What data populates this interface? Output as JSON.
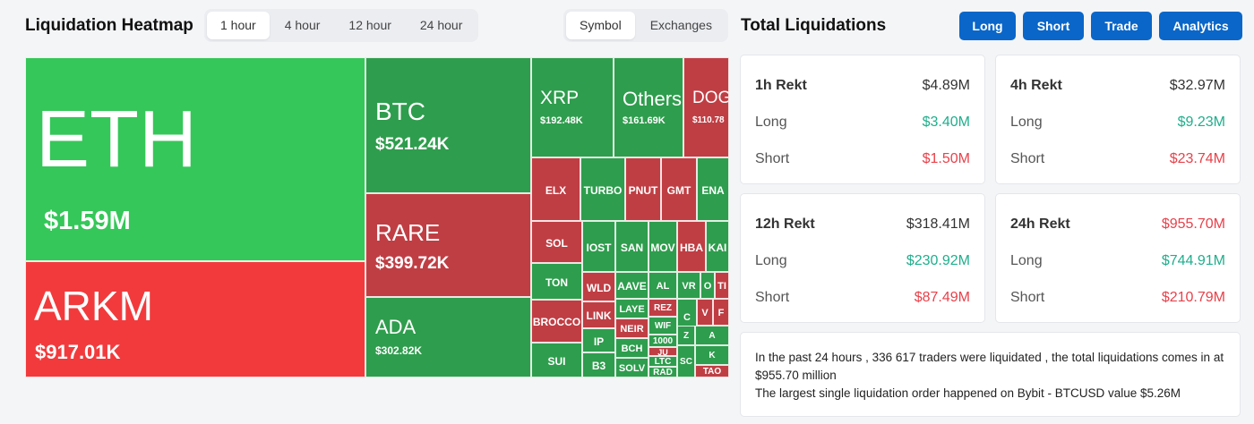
{
  "heatmap": {
    "title": "Liquidation Heatmap",
    "time_tabs": [
      "1 hour",
      "4 hour",
      "12 hour",
      "24 hour"
    ],
    "active_time_tab": "1 hour",
    "view_tabs": [
      "Symbol",
      "Exchanges"
    ],
    "active_view_tab": "Symbol",
    "colors": {
      "strong_green": "#35c759",
      "green": "#2e9d4d",
      "strong_red": "#f23a3c",
      "red": "#bf3e44"
    },
    "tiles": {
      "eth": {
        "symbol": "ETH",
        "value": "$1.59M"
      },
      "arkm": {
        "symbol": "ARKM",
        "value": "$917.01K"
      },
      "btc": {
        "symbol": "BTC",
        "value": "$521.24K"
      },
      "rare": {
        "symbol": "RARE",
        "value": "$399.72K"
      },
      "ada": {
        "symbol": "ADA",
        "value": "$302.82K"
      },
      "xrp": {
        "symbol": "XRP",
        "value": "$192.48K"
      },
      "others": {
        "symbol": "Others",
        "value": "$161.69K"
      },
      "doge": {
        "symbol": "DOG",
        "value": "$110.78"
      }
    },
    "small_tiles": [
      "ELX",
      "TURBO",
      "PNUT",
      "GMT",
      "ENA",
      "SOL",
      "IOST",
      "SAN",
      "MOV",
      "HBA",
      "KAI",
      "TON",
      "WLD",
      "AAVE",
      "AL",
      "VR",
      "O",
      "TI",
      "BROCCO",
      "LINK",
      "LAYE",
      "REZ",
      "C",
      "V",
      "F",
      "NEIR",
      "WIF",
      "Z",
      "A",
      "IP",
      "BCH",
      "1000",
      "JU",
      "K",
      "SUI",
      "B3",
      "SOLV",
      "LTC",
      "RAD",
      "SC",
      "TAO"
    ]
  },
  "liquidations": {
    "title": "Total Liquidations",
    "buttons": [
      "Long",
      "Short",
      "Trade",
      "Analytics"
    ],
    "cards": [
      {
        "label": "1h Rekt",
        "total": "$4.89M",
        "long_label": "Long",
        "long": "$3.40M",
        "short_label": "Short",
        "short": "$1.50M"
      },
      {
        "label": "4h Rekt",
        "total": "$32.97M",
        "long_label": "Long",
        "long": "$9.23M",
        "short_label": "Short",
        "short": "$23.74M"
      },
      {
        "label": "12h Rekt",
        "total": "$318.41M",
        "long_label": "Long",
        "long": "$230.92M",
        "short_label": "Short",
        "short": "$87.49M"
      },
      {
        "label": "24h Rekt",
        "total": "$955.70M",
        "long_label": "Long",
        "long": "$744.91M",
        "short_label": "Short",
        "short": "$210.79M"
      }
    ],
    "summary_line1": "In the past 24 hours , 336 617 traders were liquidated , the total liquidations comes in at $955.70 million",
    "summary_line2": "The largest single liquidation order happened on Bybit - BTCUSD value $5.26M"
  }
}
